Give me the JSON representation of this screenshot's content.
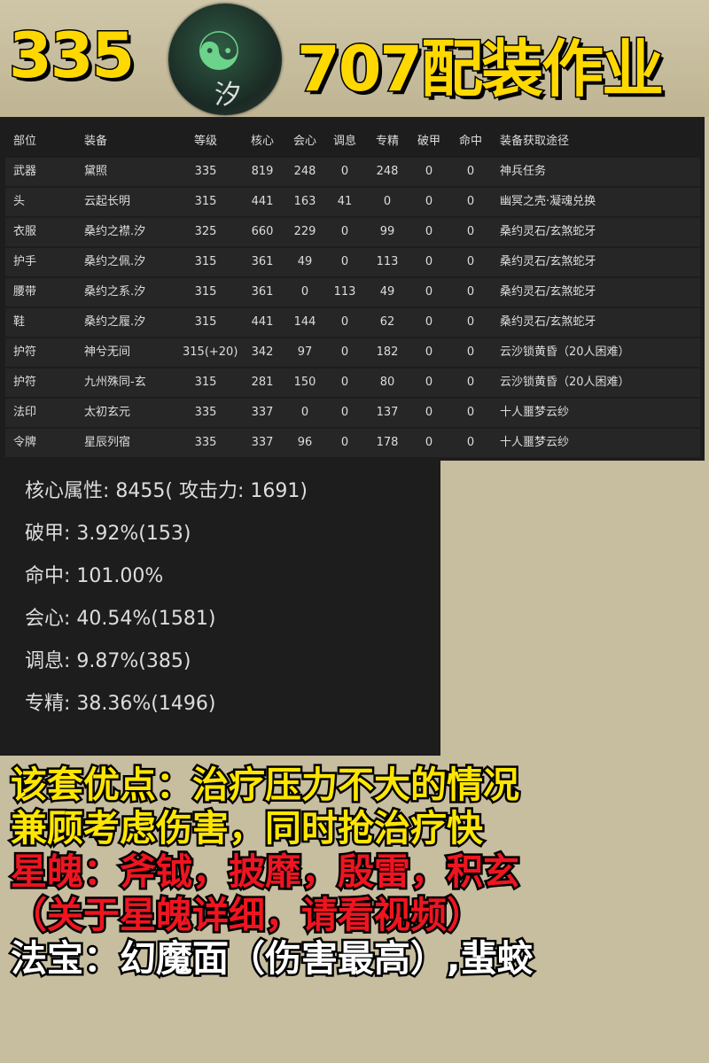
{
  "header": {
    "left_title": "335",
    "right_title": "707配装作业",
    "logo_char": "汐"
  },
  "table": {
    "columns": [
      "部位",
      "装备",
      "等级",
      "核心",
      "会心",
      "调息",
      "专精",
      "破甲",
      "命中",
      "装备获取途径"
    ],
    "rows": [
      [
        "武器",
        "黛照",
        "335",
        "819",
        "248",
        "0",
        "248",
        "0",
        "0",
        "神兵任务"
      ],
      [
        "头",
        "云起长明",
        "315",
        "441",
        "163",
        "41",
        "0",
        "0",
        "0",
        "幽冥之壳·凝魂兑换"
      ],
      [
        "衣服",
        "桑约之襟.汐",
        "325",
        "660",
        "229",
        "0",
        "99",
        "0",
        "0",
        "桑约灵石/玄煞蛇牙"
      ],
      [
        "护手",
        "桑约之佩.汐",
        "315",
        "361",
        "49",
        "0",
        "113",
        "0",
        "0",
        "桑约灵石/玄煞蛇牙"
      ],
      [
        "腰带",
        "桑约之系.汐",
        "315",
        "361",
        "0",
        "113",
        "49",
        "0",
        "0",
        "桑约灵石/玄煞蛇牙"
      ],
      [
        "鞋",
        "桑约之履.汐",
        "315",
        "441",
        "144",
        "0",
        "62",
        "0",
        "0",
        "桑约灵石/玄煞蛇牙"
      ],
      [
        "护符",
        "神兮无间",
        "315(+20)",
        "342",
        "97",
        "0",
        "182",
        "0",
        "0",
        "云沙锁黄昏（20人困难）"
      ],
      [
        "护符",
        "九州殊同-玄",
        "315",
        "281",
        "150",
        "0",
        "80",
        "0",
        "0",
        "云沙锁黄昏（20人困难）"
      ],
      [
        "法印",
        "太初玄元",
        "335",
        "337",
        "0",
        "0",
        "137",
        "0",
        "0",
        "十人噩梦云纱"
      ],
      [
        "令牌",
        "星辰列宿",
        "335",
        "337",
        "96",
        "0",
        "178",
        "0",
        "0",
        "十人噩梦云纱"
      ]
    ]
  },
  "stats": [
    "核心属性: 8455( 攻击力: 1691)",
    "破甲: 3.92%(153)",
    "命中: 101.00%",
    "会心: 40.54%(1581)",
    "调息: 9.87%(385)",
    "专精: 38.36%(1496)"
  ],
  "notes": [
    {
      "text": "该套优点：治疗压力不大的情况",
      "color": "#ffe600"
    },
    {
      "text": "兼顾考虑伤害，同时抢治疗快",
      "color": "#ffe600"
    },
    {
      "text": "星魄：斧钺，披靡，殷雷，积玄",
      "color": "#ee1520"
    },
    {
      "text": "（关于星魄详细，请看视频）",
      "color": "#ee1520"
    },
    {
      "text": "法宝：幻魔面（伤害最高）,蜚蛟",
      "color": "#ffffff"
    }
  ]
}
